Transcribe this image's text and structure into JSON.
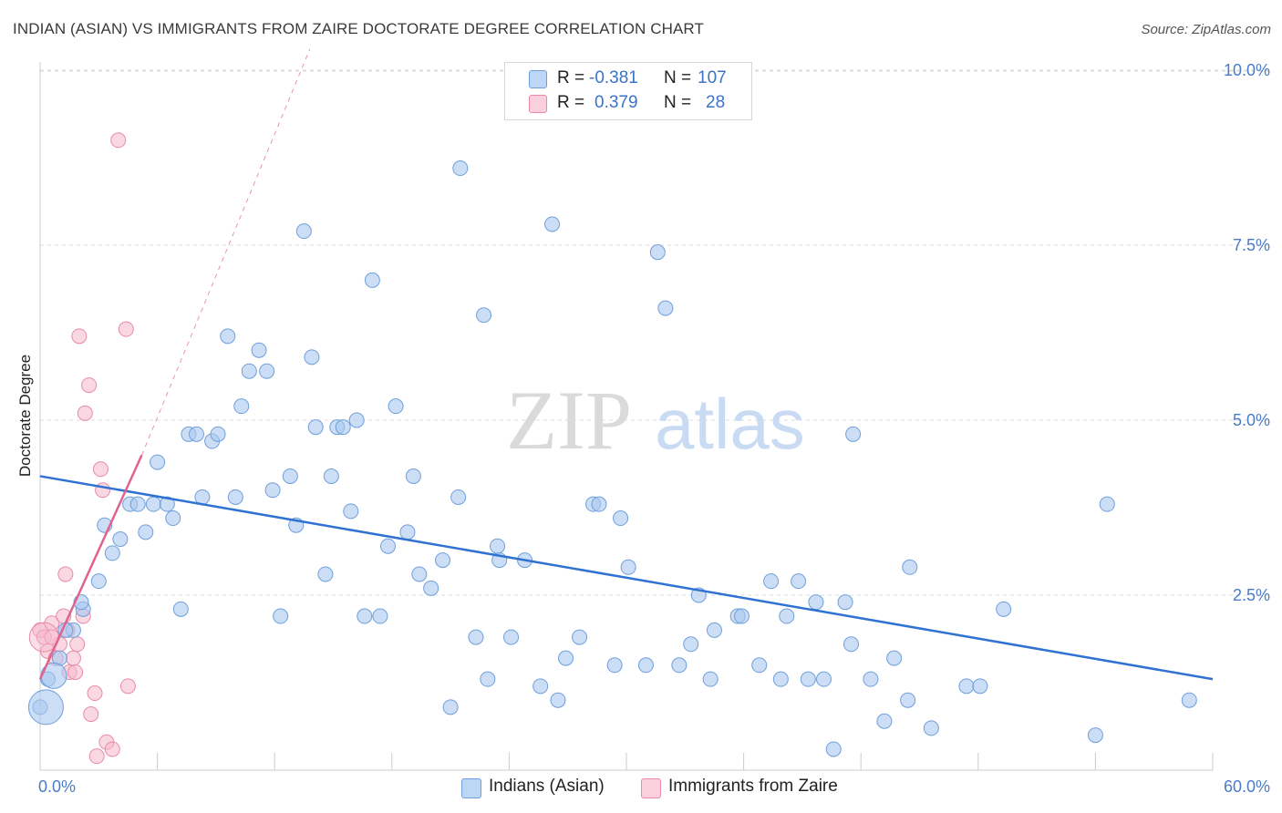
{
  "header": {
    "title": "INDIAN (ASIAN) VS IMMIGRANTS FROM ZAIRE DOCTORATE DEGREE CORRELATION CHART",
    "source": "Source: ZipAtlas.com"
  },
  "legend_top": {
    "rows": [
      {
        "r_label": "R =",
        "r_value": "-0.381",
        "n_label": "N =",
        "n_value": "107"
      },
      {
        "r_label": "R =",
        "r_value": "0.379",
        "n_label": "N =",
        "n_value": "28"
      }
    ]
  },
  "legend_bottom": {
    "items": [
      "Indians (Asian)",
      "Immigrants from Zaire"
    ]
  },
  "watermark": {
    "zip": "ZIP",
    "atlas": "atlas"
  },
  "colors": {
    "blue_fill": "#a8c8f0",
    "blue_stroke": "#6f9fdb",
    "blue_line": "#2f72d2",
    "pink_fill": "#f6b8cb",
    "pink_stroke": "#e88aa8",
    "pink_line": "#e0628e",
    "tick_text": "#4a7cc7",
    "grid": "#dcdcdc"
  },
  "chart_data": {
    "type": "scatter",
    "title": "INDIAN (ASIAN) VS IMMIGRANTS FROM ZAIRE DOCTORATE DEGREE CORRELATION CHART",
    "xlabel": "",
    "ylabel": "Doctorate Degree",
    "xlim": [
      0,
      60
    ],
    "ylim": [
      0,
      10.5
    ],
    "x_tick_labels": [
      "0.0%",
      "60.0%"
    ],
    "y_ticks": [
      2.5,
      5.0,
      7.5,
      10.0
    ],
    "y_tick_labels": [
      "2.5%",
      "5.0%",
      "7.5%",
      "10.0%"
    ],
    "grid": "horizontal dashed",
    "series": [
      {
        "name": "Indians (Asian)",
        "color": "#a8c8f0",
        "points": [
          [
            0.0,
            0.9
          ],
          [
            0.4,
            1.3
          ],
          [
            1.0,
            1.6
          ],
          [
            1.7,
            2.0
          ],
          [
            1.3,
            2.0
          ],
          [
            2.2,
            2.3
          ],
          [
            2.1,
            2.4
          ],
          [
            3.0,
            2.7
          ],
          [
            3.7,
            3.1
          ],
          [
            3.3,
            3.5
          ],
          [
            4.1,
            3.3
          ],
          [
            4.6,
            3.8
          ],
          [
            5.0,
            3.8
          ],
          [
            5.4,
            3.4
          ],
          [
            5.8,
            3.8
          ],
          [
            6.0,
            4.4
          ],
          [
            6.5,
            3.8
          ],
          [
            6.8,
            3.6
          ],
          [
            7.2,
            2.3
          ],
          [
            7.6,
            4.8
          ],
          [
            8.0,
            4.8
          ],
          [
            8.3,
            3.9
          ],
          [
            8.8,
            4.7
          ],
          [
            9.1,
            4.8
          ],
          [
            9.6,
            6.2
          ],
          [
            10.0,
            3.9
          ],
          [
            10.3,
            5.2
          ],
          [
            10.7,
            5.7
          ],
          [
            11.2,
            6.0
          ],
          [
            11.6,
            5.7
          ],
          [
            11.9,
            4.0
          ],
          [
            12.3,
            2.2
          ],
          [
            12.8,
            4.2
          ],
          [
            13.1,
            3.5
          ],
          [
            13.5,
            7.7
          ],
          [
            13.9,
            5.9
          ],
          [
            14.1,
            4.9
          ],
          [
            14.6,
            2.8
          ],
          [
            14.9,
            4.2
          ],
          [
            15.2,
            4.9
          ],
          [
            15.5,
            4.9
          ],
          [
            15.9,
            3.7
          ],
          [
            16.2,
            5.0
          ],
          [
            16.6,
            2.2
          ],
          [
            17.0,
            7.0
          ],
          [
            17.4,
            2.2
          ],
          [
            17.8,
            3.2
          ],
          [
            18.2,
            5.2
          ],
          [
            18.8,
            3.4
          ],
          [
            19.1,
            4.2
          ],
          [
            19.4,
            2.8
          ],
          [
            20.0,
            2.6
          ],
          [
            20.6,
            3.0
          ],
          [
            21.0,
            0.9
          ],
          [
            21.5,
            8.6
          ],
          [
            21.4,
            3.9
          ],
          [
            22.3,
            1.9
          ],
          [
            22.7,
            6.5
          ],
          [
            22.9,
            1.3
          ],
          [
            23.4,
            3.2
          ],
          [
            23.5,
            3.0
          ],
          [
            24.1,
            1.9
          ],
          [
            24.8,
            3.0
          ],
          [
            25.6,
            1.2
          ],
          [
            26.2,
            7.8
          ],
          [
            26.5,
            1.0
          ],
          [
            26.9,
            1.6
          ],
          [
            27.6,
            1.9
          ],
          [
            28.3,
            3.8
          ],
          [
            28.6,
            3.8
          ],
          [
            29.4,
            1.5
          ],
          [
            29.7,
            3.6
          ],
          [
            30.1,
            2.9
          ],
          [
            31.0,
            1.5
          ],
          [
            31.6,
            7.4
          ],
          [
            32.0,
            6.6
          ],
          [
            32.7,
            1.5
          ],
          [
            33.3,
            1.8
          ],
          [
            33.7,
            2.5
          ],
          [
            34.3,
            1.3
          ],
          [
            34.5,
            2.0
          ],
          [
            35.7,
            2.2
          ],
          [
            35.9,
            2.2
          ],
          [
            36.8,
            1.5
          ],
          [
            37.4,
            2.7
          ],
          [
            37.9,
            1.3
          ],
          [
            38.2,
            2.2
          ],
          [
            38.8,
            2.7
          ],
          [
            39.3,
            1.3
          ],
          [
            39.7,
            2.4
          ],
          [
            40.1,
            1.3
          ],
          [
            40.6,
            0.3
          ],
          [
            41.2,
            2.4
          ],
          [
            41.5,
            1.8
          ],
          [
            41.6,
            4.8
          ],
          [
            42.5,
            1.3
          ],
          [
            43.2,
            0.7
          ],
          [
            43.7,
            1.6
          ],
          [
            44.4,
            1.0
          ],
          [
            44.5,
            2.9
          ],
          [
            45.6,
            0.6
          ],
          [
            47.4,
            1.2
          ],
          [
            48.1,
            1.2
          ],
          [
            49.3,
            2.3
          ],
          [
            54.0,
            0.5
          ],
          [
            54.6,
            3.8
          ],
          [
            58.8,
            1.0
          ]
        ]
      },
      {
        "name": "Immigrants from Zaire",
        "color": "#f6b8cb",
        "points": [
          [
            0.0,
            2.0
          ],
          [
            0.2,
            1.9
          ],
          [
            0.4,
            1.7
          ],
          [
            0.6,
            2.1
          ],
          [
            0.8,
            1.6
          ],
          [
            1.0,
            1.8
          ],
          [
            1.2,
            2.2
          ],
          [
            1.4,
            2.0
          ],
          [
            1.5,
            1.4
          ],
          [
            1.7,
            1.6
          ],
          [
            1.8,
            1.4
          ],
          [
            1.3,
            2.8
          ],
          [
            2.0,
            6.2
          ],
          [
            2.2,
            2.2
          ],
          [
            2.3,
            5.1
          ],
          [
            2.5,
            5.5
          ],
          [
            2.6,
            0.8
          ],
          [
            2.8,
            1.1
          ],
          [
            2.9,
            0.2
          ],
          [
            3.1,
            4.3
          ],
          [
            3.2,
            4.0
          ],
          [
            3.4,
            0.4
          ],
          [
            3.7,
            0.3
          ],
          [
            4.0,
            9.0
          ],
          [
            4.4,
            6.3
          ],
          [
            4.5,
            1.2
          ],
          [
            0.6,
            1.9
          ],
          [
            1.9,
            1.8
          ]
        ]
      }
    ],
    "trendlines": [
      {
        "series": "Indians (Asian)",
        "x": [
          0.0,
          60.0
        ],
        "y": [
          4.2,
          1.3
        ]
      },
      {
        "series": "Immigrants from Zaire",
        "x": [
          0.0,
          5.2
        ],
        "y": [
          1.3,
          4.5
        ],
        "dashed_extension_to": [
          13.8,
          10.3
        ]
      }
    ]
  }
}
